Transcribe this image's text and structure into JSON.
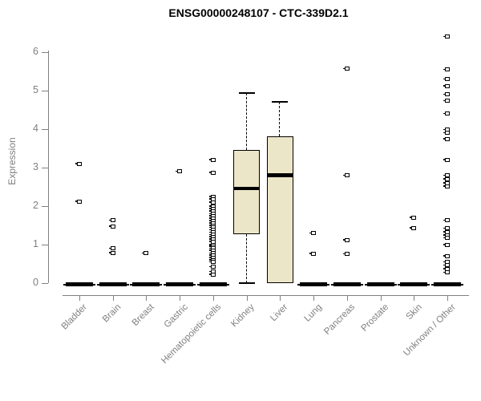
{
  "title": "ENSG00000248107 - CTC-339D2.1",
  "y_axis": {
    "label": "Expression",
    "tick_labels": [
      "0",
      "1",
      "2",
      "3",
      "4",
      "5",
      "6"
    ]
  },
  "x_axis": {
    "categories": [
      "Bladder",
      "Brain",
      "Breast",
      "Gastric",
      "Hematopoietic cells",
      "Kidney",
      "Liver",
      "Lung",
      "Pancreas",
      "Prostate",
      "Skin",
      "Unknown / Other"
    ]
  },
  "colors": {
    "axis": "#808080",
    "box_fill": "#ECE6C8",
    "box_border": "#000000",
    "title_text": "#000000"
  },
  "chart_data": {
    "type": "boxplot",
    "title": "ENSG00000248107 - CTC-339D2.1",
    "xlabel": "",
    "ylabel": "Expression",
    "ylim": [
      0,
      6.5
    ],
    "yticks": [
      0,
      1,
      2,
      3,
      4,
      5,
      6
    ],
    "grid": false,
    "legend": false,
    "categories": [
      "Bladder",
      "Brain",
      "Breast",
      "Gastric",
      "Hematopoietic cells",
      "Kidney",
      "Liver",
      "Lung",
      "Pancreas",
      "Prostate",
      "Skin",
      "Unknown / Other"
    ],
    "series": [
      {
        "category": "Bladder",
        "box": {
          "min": 0,
          "q1": 0,
          "median": 0,
          "q3": 0,
          "max": 0
        },
        "outliers": [
          3.1,
          2.12
        ]
      },
      {
        "category": "Brain",
        "box": {
          "min": 0,
          "q1": 0,
          "median": 0,
          "q3": 0,
          "max": 0
        },
        "outliers": [
          1.63,
          1.47,
          0.9,
          0.79
        ]
      },
      {
        "category": "Breast",
        "box": {
          "min": 0,
          "q1": 0,
          "median": 0,
          "q3": 0,
          "max": 0
        },
        "outliers": [
          0.78
        ]
      },
      {
        "category": "Gastric",
        "box": {
          "min": 0,
          "q1": 0,
          "median": 0,
          "q3": 0,
          "max": 0
        },
        "outliers": [
          2.9
        ]
      },
      {
        "category": "Hematopoietic cells",
        "box": {
          "min": 0,
          "q1": 0,
          "median": 0,
          "q3": 0,
          "max": 0
        },
        "outliers": [
          3.2,
          2.87,
          2.25,
          2.18,
          2.1,
          2.0,
          1.93,
          1.87,
          1.8,
          1.74,
          1.68,
          1.62,
          1.56,
          1.5,
          1.44,
          1.38,
          1.32,
          1.26,
          1.2,
          1.14,
          1.08,
          1.0,
          0.95,
          0.9,
          0.85,
          0.78,
          0.72,
          0.66,
          0.6,
          0.55,
          0.42,
          0.3,
          0.22
        ]
      },
      {
        "category": "Kidney",
        "box": {
          "min": 0,
          "q1": 1.27,
          "median": 2.45,
          "q3": 3.45,
          "max": 4.93
        },
        "outliers": []
      },
      {
        "category": "Liver",
        "box": {
          "min": 0,
          "q1": 0,
          "median": 2.8,
          "q3": 3.82,
          "max": 4.7
        },
        "outliers": []
      },
      {
        "category": "Lung",
        "box": {
          "min": 0,
          "q1": 0,
          "median": 0,
          "q3": 0,
          "max": 0
        },
        "outliers": [
          1.3,
          0.77
        ]
      },
      {
        "category": "Pancreas",
        "box": {
          "min": 0,
          "q1": 0,
          "median": 0,
          "q3": 0,
          "max": 0
        },
        "outliers": [
          5.57,
          2.8,
          1.12,
          0.76
        ]
      },
      {
        "category": "Prostate",
        "box": {
          "min": 0,
          "q1": 0,
          "median": 0,
          "q3": 0,
          "max": 0
        },
        "outliers": []
      },
      {
        "category": "Skin",
        "box": {
          "min": 0,
          "q1": 0,
          "median": 0,
          "q3": 0,
          "max": 0
        },
        "outliers": [
          1.7,
          1.43
        ]
      },
      {
        "category": "Unknown / Other",
        "box": {
          "min": 0,
          "q1": 0,
          "median": 0,
          "q3": 0,
          "max": 0
        },
        "outliers": [
          6.4,
          5.55,
          5.3,
          5.12,
          4.9,
          4.73,
          4.4,
          3.98,
          3.9,
          3.75,
          3.2,
          2.8,
          2.7,
          2.6,
          2.52,
          1.63,
          1.42,
          1.33,
          1.25,
          1.17,
          1.0,
          0.7,
          0.55,
          0.46,
          0.37,
          0.28
        ]
      }
    ]
  }
}
